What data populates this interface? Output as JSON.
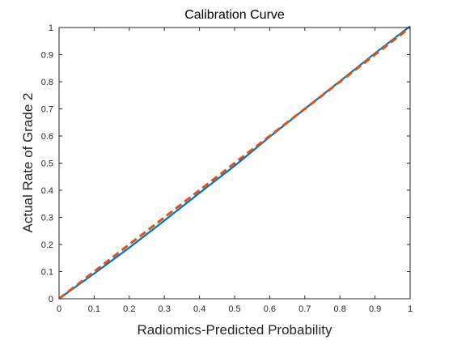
{
  "chart_data": {
    "type": "line",
    "title": "Calibration Curve",
    "xlabel": "Radiomics-Predicted Probability",
    "ylabel": "Actual Rate of Grade 2",
    "xlim": [
      0,
      1
    ],
    "ylim": [
      0,
      1
    ],
    "xticks": [
      "0",
      "0.1",
      "0.2",
      "0.3",
      "0.4",
      "0.5",
      "0.6",
      "0.7",
      "0.8",
      "0.9",
      "1"
    ],
    "yticks": [
      "0",
      "0.1",
      "0.2",
      "0.3",
      "0.4",
      "0.5",
      "0.6",
      "0.7",
      "0.8",
      "0.9",
      "1"
    ],
    "grid": false,
    "series": [
      {
        "style": "solid",
        "color": "#0072BD",
        "x": [
          0,
          0.1,
          0.2,
          0.3,
          0.4,
          0.5,
          0.6,
          0.7,
          0.8,
          0.9,
          1.0
        ],
        "y": [
          0,
          0.093,
          0.188,
          0.288,
          0.39,
          0.49,
          0.597,
          0.7,
          0.802,
          0.905,
          1.005
        ]
      },
      {
        "style": "dashed",
        "color": "#D95319",
        "x": [
          0,
          1
        ],
        "y": [
          0,
          1
        ]
      }
    ]
  }
}
